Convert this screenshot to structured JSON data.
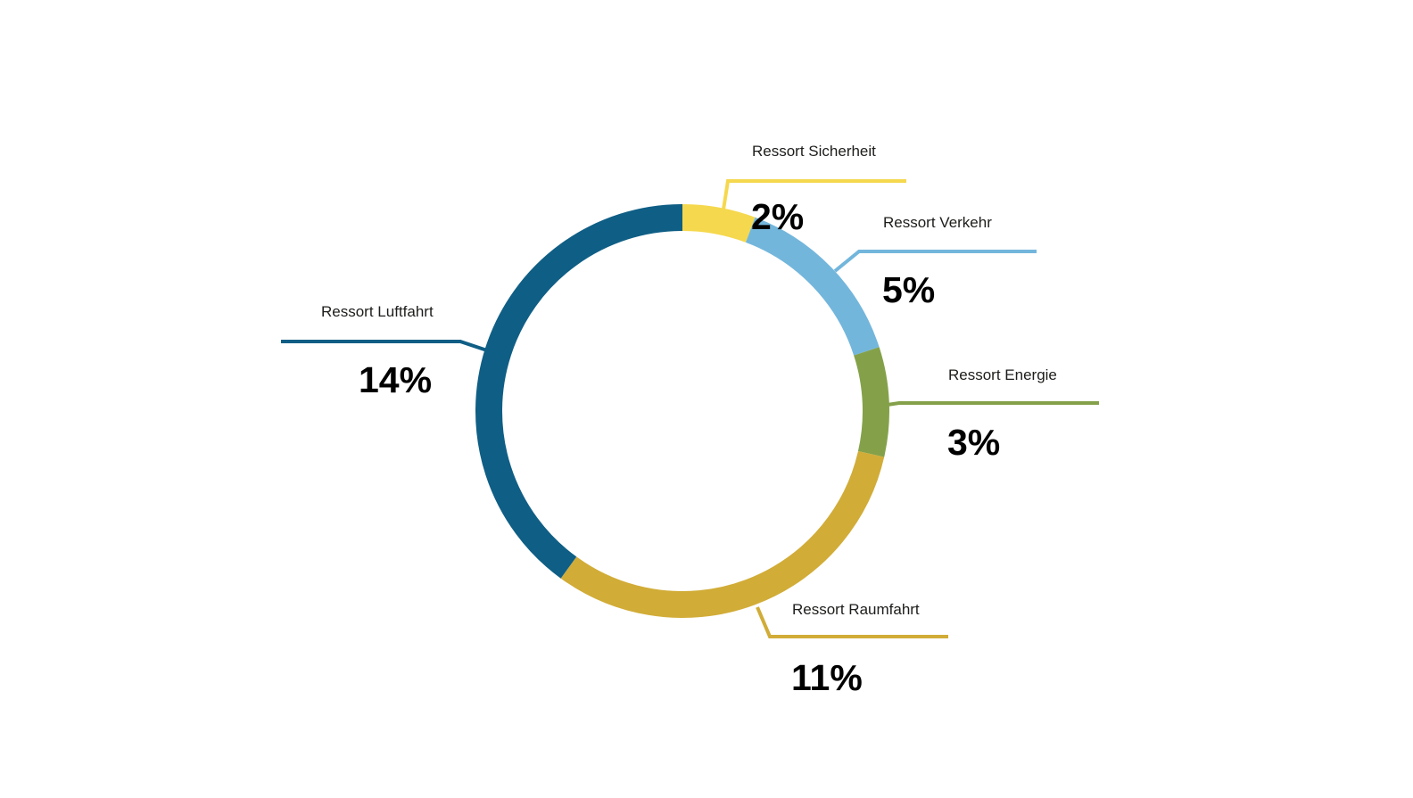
{
  "chart_data": {
    "type": "pie",
    "variant": "donut",
    "start_angle": "top",
    "direction": "clockwise",
    "unit": "%",
    "legend_position": "callouts",
    "text_color": "#1d1d1b",
    "segments": [
      {
        "label": "Ressort Sicherheit",
        "value": 2,
        "display": "2%",
        "color": "#f5d84d"
      },
      {
        "label": "Ressort Verkehr",
        "value": 5,
        "display": "5%",
        "color": "#73b6dc"
      },
      {
        "label": "Ressort Energie",
        "value": 3,
        "display": "3%",
        "color": "#84a14a"
      },
      {
        "label": "Ressort Raumfahrt",
        "value": 11,
        "display": "11%",
        "color": "#d1ac37"
      },
      {
        "label": "Ressort Luftfahrt",
        "value": 14,
        "display": "14%",
        "color": "#0f5e85"
      }
    ]
  }
}
